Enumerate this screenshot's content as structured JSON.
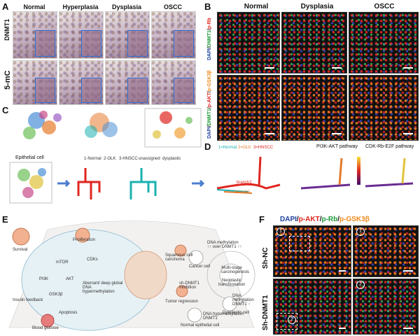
{
  "panels": {
    "A": {
      "letter": "A",
      "cols": [
        "Normal",
        "Hyperplasia",
        "Dysplasia",
        "OSCC"
      ],
      "rows": [
        "DNMT1",
        "5-mC"
      ]
    },
    "B": {
      "letter": "B",
      "cols": [
        "Normal",
        "Dysplasia",
        "OSCC"
      ],
      "row1": {
        "dapi": "DAPI",
        "dnmt": "DNMT1",
        "marker": "p-Rb"
      },
      "row2": {
        "dapi": "DAPI",
        "dnmt": "DNMT1",
        "akt": "p-AKT",
        "gsk": "p-GSK3β"
      }
    },
    "C": {
      "letter": "C",
      "epithelial": "Epithelial cell",
      "legend": [
        "1-Normal",
        "2-OLK",
        "3-HNSCC"
      ],
      "legend_extra": [
        "unassigned",
        "dysplastic"
      ]
    },
    "D": {
      "letter": "D",
      "legend": [
        "1=Normal",
        "2=OLK",
        "3=HNSCC"
      ],
      "branch1": "branch1",
      "branch2": "branch2",
      "titles": [
        "PI3K-AKT  pathway",
        "CDK-Rb-E2F  pathway"
      ]
    },
    "E": {
      "letter": "E",
      "labels": {
        "survival": "Survival",
        "proliferation": "Proliferation",
        "pi3k": "PI3K",
        "mtor": "mTOR",
        "akt": "AKT",
        "gsk3b": "GSK3β",
        "cdk": "CDKs",
        "insulin": "Insulin feedback",
        "glucose": "Blood glucose",
        "apoptosis": "Apoptosis",
        "dna": "Aberrant/ deep global DNA hypermethylation",
        "sqcc": "Squamous cell carcinoma",
        "tumor": "Tumor regression",
        "multi": "Multi-stage carcinogenesis",
        "neo": "Neoplastic transformation",
        "sinh": "sh-DNMT1 Inhibition",
        "cancer": "Cancer cell",
        "dysplastic": "Dysplastic cell",
        "normal": "Normal epithelial cell",
        "cancer_note": "DNA methylation ↑↑ over DNMT1 ↑↑",
        "dys_note": "DNA methylation DNMT1 ↑",
        "normal_note": "DNA hypomethylation DNMT1"
      }
    },
    "F": {
      "letter": "F",
      "title_parts": [
        "DAPI",
        "p-AKT",
        "p-Rb",
        "p-GSK3β"
      ],
      "rows": [
        "Sh-NC",
        "Sh-DNMT1"
      ],
      "markers": [
        "1",
        "2"
      ]
    }
  },
  "colors": {
    "red": "#e0261f",
    "green": "#1f9a3a",
    "orange": "#f08a1c",
    "blue": "#1b3fa0",
    "teal": "#1ab0b0",
    "purple": "#6a2c91"
  }
}
